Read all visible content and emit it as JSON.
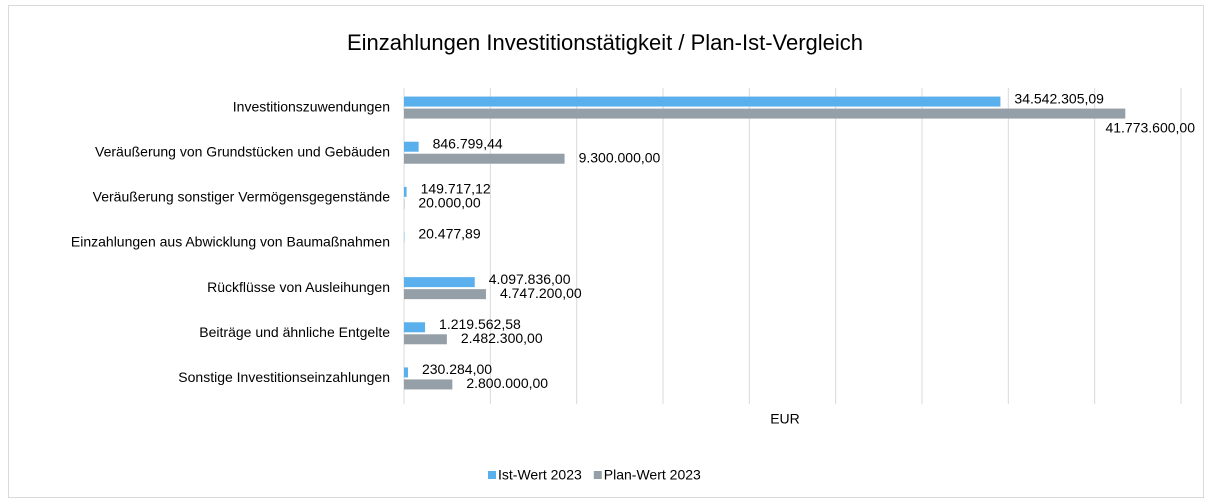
{
  "chart_data": {
    "type": "hbar",
    "title": "Einzahlungen Investitionstätigkeit / Plan-Ist-Vergleich",
    "x_label": "EUR",
    "categories": [
      "Investitionszuwendungen",
      "Veräußerung von Grundstücken und Gebäuden",
      "Veräußerung sonstiger Vermögensgegenstände",
      "Einzahlungen aus Abwicklung von Baumaßnahmen",
      "Rückflüsse von Ausleihungen",
      "Beiträge und ähnliche Entgelte",
      "Sonstige Investitionseinzahlungen"
    ],
    "series": [
      {
        "name": "Ist-Wert 2023",
        "color": "#5aafed",
        "values": [
          34542305.09,
          846799.44,
          149717.12,
          20477.89,
          4097836.0,
          1219562.58,
          230284.0
        ],
        "value_labels": [
          "34.542.305,09",
          "846.799,44",
          "149.717,12",
          "20.477,89",
          "4.097.836,00",
          "1.219.562,58",
          "230.284,00"
        ]
      },
      {
        "name": "Plan-Wert 2023",
        "color": "#959fa7",
        "values": [
          41773600.0,
          9300000.0,
          20000.0,
          null,
          4747200.0,
          2482300.0,
          2800000.0
        ],
        "value_labels": [
          "41.773.600,00",
          "9.300.000,00",
          "20.000,00",
          null,
          "4.747.200,00",
          "2.482.300,00",
          "2.800.000,00"
        ]
      }
    ],
    "xlim": [
      0,
      45000000
    ],
    "xticks": [
      0,
      5000000,
      10000000,
      15000000,
      20000000,
      25000000,
      30000000,
      35000000,
      40000000,
      45000000
    ],
    "grid": true,
    "legend": "bottom"
  }
}
